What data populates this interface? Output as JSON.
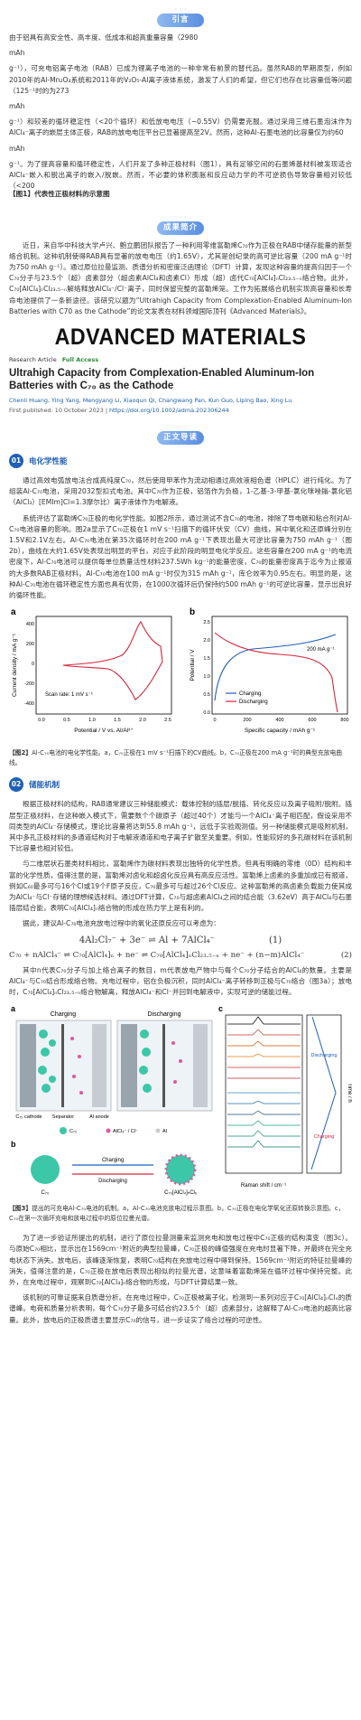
{
  "intro": {
    "heading": "引言",
    "lines": [
      "由于铝具有高安全性、高丰度、低成本和超高重量容量（2980",
      "mAh",
      "g⁻¹），可充电铝离子电池（RAB）已成为锂离子电池的一种非常有前景的替代品。虽然RAB的早期原型，例如2010年的Al-Mn₂O₄系统和2011年的V₂O₅-Al离子液体系统，激发了人们的希望，但它们也存在比容量低等问题（125⁻¹时的为273",
      "mAh",
      "g⁻¹）和较差的循环稳定性（<20个循环）和低放电电压（~0.55V）仍需要克服。通过采用三维石墨泡沫作为AlCl₄⁻离子的嵌层主体正极，RAB的放电电压平台已显著提高至2V。然而，这种Al-石墨电池的比容量仅为约60",
      "mAh",
      "g⁻¹。为了提高容量和循环稳定性，人们开发了多种正极材料（图1），具有足够空间的石墨烯基材料被发现适合AlCl₄⁻嵌入和脱出离子的嵌入/脱嵌。然而，不必要的体积膨胀和反应动力学的不可逆损伤导致容量相对较低（<200",
      "【图1】代表性正极材料的示意图"
    ]
  },
  "summary": {
    "heading": "成果简介",
    "paragraph": "近日，来自华中科技大学卢兴、鲍立鹏团队报告了一种利用零维富勒烯C₇₀作为正极在RAB中储存能量的新型络合机制。这种机制使得RAB具有显著的放电电压（约1.65V），尤其是创纪录的高可逆比容量（200 mA g⁻¹时为750 mAh g⁻¹）。通过原位拉曼监测、质谱分析和密度泛函理论（DFT）计算，发现这种容量的提高归因于一个C₇₀分子与23.5个（超）卤素部分（超卤素AlCl₄和卤素Cl）形成（超）卤代C₇₀[AlCl₄]ₙCl₂₃.₅₋ₙ络合物。此外，C₇₀[AlCl₄]ₙCl₂₃.₅₋ₙ解络释放AlCl₄⁻/Cl⁻离子，同时保留完整的富勒烯笼。工作为拓展络合机制实现高容量和长寿命电池提供了一条新途径。该研究以题为“Ultrahigh Capacity from Complexation-Enabled Aluminum-Ion Batteries with C70 as the Cathode”的论文发表在材料领域国际顶刊《Advanced Materials》。"
  },
  "article": {
    "journal": "ADVANCED MATERIALS",
    "type": "Research Article",
    "access": "Full Access",
    "title": "Ultrahigh Capacity from Complexation-Enabled Aluminum-Ion Batteries with C₇₀ as the Cathode",
    "authors": "Chenli Huang, Ying Yang, Mengyang Li, Xiaoqun Qi, Changwang Pan, Kun Guo, Liping Bao, Xing Lu",
    "published": "First published: 10 October 2023",
    "doi": "https://doi.org/10.1002/adma.202306244"
  },
  "guide": {
    "heading": "正文导读"
  },
  "section1": {
    "number": "01",
    "title": "电化学性能",
    "paragraphs": [
      "通过高效电弧放电法合成高纯度C₇₀，然后使用甲苯作为流动相通过高效液相色谱（HPLC）进行纯化。为了组装Al-C₇₀电池，采用2032型扣式电池。其中C₇₀作为正极，铝箔作为负极，1-乙基-3-甲基-氯化咪唑鎓-氯化铝（AlCl₃）[EMIm]Cl=1.3摩尔比）离子液体作为电解液。",
      "系统评估了富勒烯C₇₀正极的电化学性能。如图2所示，通过测试不含C₇₀的电池，排除了导电碳和粘合剂对Al-C₇₀电池容量的影响。图2a显示了C₇₀正极在1 mV s⁻¹扫描下的循环伏安（CV）曲线，其中氧化和还原峰分别在1.5V和2.1V左右。Al-C₇₀电池在第35次循环时在200 mA g⁻¹下表现出最大可逆比容量为750 mAh g⁻¹（图2b），曲线在大约1.65V处表现出明显的平台，对应于此阶段的明显电化学反应。这些容量在200 mA g⁻¹的电流密度下，Al-C₇₀电池可以提供每单位质量活性材料237.5Wh kg⁻¹的能量密度，C₇₀的能量密度高于迄今为止报道的大多数RAB正极材料。Al-C₇₀电池在100 mA g⁻¹时仅为315 mAh g⁻¹，库仑效率为0.95左右。明显的是，这种Al-C₇₀电池在循环稳定性方面也具有优势，在1000次循环后仍保持约500 mAh g⁻¹的可逆比容量，显示出良好的循环性能。"
    ]
  },
  "figure1": {
    "panel_a": "a",
    "panel_b": "b",
    "a_ylabel": "Current density / mA g⁻¹",
    "a_xlabel": "Potential / V vs. Al/Al³⁺",
    "a_note": "Scan rate: 1 mV s⁻¹",
    "a_yticks": [
      "400",
      "200",
      "0",
      "-200",
      "-400"
    ],
    "a_xticks": [
      "0.0",
      "0.5",
      "1.0",
      "1.5",
      "2.0",
      "2.5"
    ],
    "b_ylabel": "Potential / V",
    "b_xlabel": "Specific capacity / mAh g⁻¹",
    "b_note": "200 mA g⁻¹",
    "b_legend": [
      "Charging",
      "Discharging"
    ],
    "b_yticks": [
      "2.5",
      "2.0",
      "1.5",
      "1.0",
      "0.5",
      "0.0"
    ],
    "b_xticks": [
      "0",
      "200",
      "400",
      "600",
      "800"
    ],
    "caption_label": "【图2】",
    "caption": "Al-C₇₀电池的电化学性能。a，C₇₀正极在1 mV s⁻¹扫描下的CV曲线。b，C₇₀正极在200 mA g⁻¹时的典型充放电曲线。"
  },
  "section2": {
    "number": "02",
    "title": "储能机制",
    "paragraphs": [
      "根据正极材料的结构，RAB通常建议三种储能模式：载体控制的插层/脱插、转化反应以及离子吸附/脱附。插层型正极材料，在这种嵌入模式下，需要数个个碳原子（超过40个）才能与一个AlCl₄⁻离子相匹配，假设采用不同类型的AlCl₄⁻存储模式，理论比容量将达到55.8 mAh g⁻¹，远低于实验观测值。另一种储能模式是吸附机制，其中多孔正极材料的多通道结构对于电解液通道和电子离子扩散至关重要。例如，性能较好的多孔碳材料在该机制下比容量也相对较低。",
      "与二维层状石墨类材料相比，富勒烯作为碳材料表现出独特的化学性质。但具有明确的零维（0D）结构和丰富的化学性质，值得注意的是，富勒烯对卤化和超卤化反应具有高反应活性。富勒烯上卤素的多重加成已有报道，例如C₆₀最多可与16个Cl或19个F原子反应，C₇₀最多可与超过26个Cl反应。这种富勒烯的高卤素负载能力使其成为AlCl₄⁻与Cl⁻存储的理想候选材料。通过DFT计算，C₇₀与超卤素AlCl₄之间的结合能（3.62eV）高于AlCl₄与石墨插层结合能，表明C₇₀[AlCl₄]ₙ络合物的形成在热力学上是有利的。",
      "据此，建议Al-C₇₀电池充放电过程中的氧化还原反应可以考虑为："
    ],
    "eq1": "4Al₂Cl₇⁻ + 3e⁻ ⇌ Al + 7AlCl₄⁻",
    "eq1_no": "(1)",
    "eq2": "C₇₀ + nAlCl₄⁻ ⇌ C₇₀[AlCl₄]ₙ + ne⁻ ⇌ C₇₀[AlCl₄]ₙCl₂₃.₅₋ₙ + ne⁻ + (n−m)AlCl₄⁻",
    "eq2_no": "(2)",
    "after_eq": "其中n代表C₇₀分子与加上络合离子的数目，m代表放电产物中与每个C₇₀分子结合的AlCl₄的数量。主要是AlCl₄⁻与C₇₀结合形成络合物。充电过程中，铝在负极沉积，同时AlCl₄⁻离子转移到正极与C₇₀络合（图3a）；放电时，C₇₀[AlCl₄]ₙCl₂₃.₅₋ₙ络合物解离，释放AlCl₄⁻和Cl⁻并回到电解液中，实现可逆的储能过程。"
  },
  "figure2": {
    "panel_a": "a",
    "panel_b": "b",
    "panel_c": "c",
    "charging": "Charging",
    "discharging": "Discharging",
    "cathode": "C₇₀ cathode",
    "separator": "Separator",
    "anode": "Al anode",
    "leg_c70": "C₇₀",
    "leg_ion": "AlCl₄⁻ / Cl⁻",
    "leg_al": "Al",
    "b_left": "C₇₀",
    "b_right": "C₇₀[AlCl₄]ₙClₓ",
    "c_xlabel": "Raman shift / cm⁻¹",
    "c_ylabel": "Time / h",
    "c_charging": "Charging",
    "c_discharging": "Discharging",
    "caption_label": "【图3】",
    "caption": "提出的可充电Al-C₇₀电池的机制。a，Al-C₇₀电池充放电过程示意图。b，C₇₀正极在电化学氧化还原转换示意图。c，C₇₀在第一次循环充电和放电过程中的原位拉曼光谱。"
  },
  "section2_more": {
    "paragraphs": [
      "为了进一步验证所提出的机制，进行了原位拉曼测量来监测充电和放电过程中C₇₀正极的结构演变（图3c）。与原始C₇₀相比，显示出在1569cm⁻¹附近的典型拉曼峰，C₇₀正极的峰值强度在充电时显著下降，并最终在完全充电状态下消失。放电后，该峰逐渐恢复，表明C₇₀结构在充放电过程中得到保持。1569cm⁻¹附近的特征拉曼峰的消失，值得注意的是，C₇₀正极在放电后表现出相似的拉曼光谱，这意味着富勒烯笼在循环过程中保持完整。此外，在充电过程中，观察到C₇₀[AlCl₄]ₙ络合物的形成，与DFT计算结果一致。",
      "该机制的可靠证据来自质谱分析。在充电过程中，C₇₀正极被离子化，检测到一系列对应于C₇₀[AlCl₄]ₙClₓ的质谱峰。电荷和质量分析表明，每个C₇₀分子最多可结合约23.5个（超）卤素部分，这解释了Al-C₇₀电池的超高比容量。此外，放电后的正极质谱主要显示C₇₀的信号，进一步证实了络合过程的可逆性。"
    ]
  }
}
